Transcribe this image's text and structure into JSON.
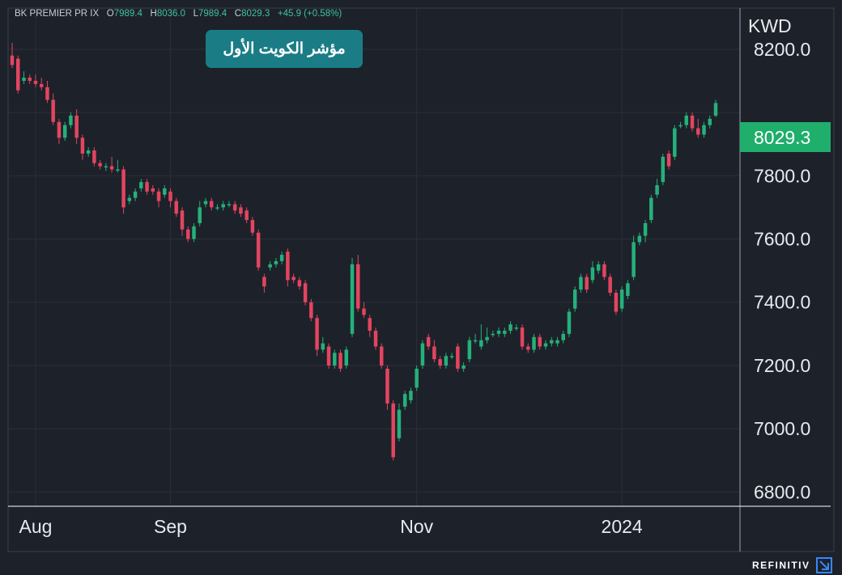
{
  "header": {
    "symbol": "BK PREMIER PR IX",
    "open_label": "O",
    "open": "7989.4",
    "high_label": "H",
    "high": "8036.0",
    "low_label": "L",
    "low": "7989.4",
    "close_label": "C",
    "close": "8029.3",
    "change": "+45.9 (+0.58%)"
  },
  "title_badge": "مؤشر الكويت الأول",
  "brand": "REFINITIV",
  "colors": {
    "up": "#26b07a",
    "down": "#e2455f",
    "background": "#1d212a",
    "grid": "#2a2f38",
    "price_tag": "#1fae6b"
  },
  "chart_data": {
    "type": "candlestick",
    "currency_label": "KWD",
    "last_price": 8029.3,
    "last_price_label": "8029.3",
    "y_ticks": [
      8200,
      8000,
      7800,
      7600,
      7400,
      7200,
      7000,
      6800
    ],
    "y_tick_labels": [
      "8200.0",
      "",
      "7800.0",
      "7600.0",
      "7400.0",
      "7200.0",
      "7000.0",
      "6800.0"
    ],
    "x_tick_labels": [
      "Aug",
      "Sep",
      "Nov",
      "2024"
    ],
    "ylim": [
      6755,
      8330
    ],
    "grid": true,
    "candles": [
      [
        8180,
        8150,
        8220,
        8140
      ],
      [
        8170,
        8070,
        8180,
        8060
      ],
      [
        8100,
        8110,
        8130,
        8090
      ],
      [
        8110,
        8100,
        8120,
        8090
      ],
      [
        8100,
        8090,
        8120,
        8080
      ],
      [
        8090,
        8080,
        8110,
        8070
      ],
      [
        8080,
        8040,
        8100,
        8030
      ],
      [
        8040,
        7970,
        8060,
        7960
      ],
      [
        7970,
        7920,
        7980,
        7900
      ],
      [
        7920,
        7960,
        7970,
        7910
      ],
      [
        7960,
        7990,
        8000,
        7950
      ],
      [
        7990,
        7920,
        8010,
        7900
      ],
      [
        7920,
        7870,
        7930,
        7850
      ],
      [
        7870,
        7880,
        7890,
        7860
      ],
      [
        7880,
        7840,
        7890,
        7830
      ],
      [
        7840,
        7830,
        7850,
        7820
      ],
      [
        7830,
        7830,
        7840,
        7815
      ],
      [
        7830,
        7820,
        7860,
        7810
      ],
      [
        7820,
        7820,
        7850,
        7810
      ],
      [
        7820,
        7700,
        7830,
        7680
      ],
      [
        7720,
        7730,
        7740,
        7710
      ],
      [
        7730,
        7750,
        7760,
        7720
      ],
      [
        7760,
        7780,
        7790,
        7750
      ],
      [
        7780,
        7750,
        7790,
        7740
      ],
      [
        7760,
        7750,
        7770,
        7740
      ],
      [
        7750,
        7720,
        7760,
        7700
      ],
      [
        7740,
        7760,
        7770,
        7730
      ],
      [
        7750,
        7720,
        7760,
        7700
      ],
      [
        7720,
        7680,
        7730,
        7670
      ],
      [
        7690,
        7630,
        7700,
        7610
      ],
      [
        7630,
        7600,
        7640,
        7590
      ],
      [
        7600,
        7640,
        7650,
        7590
      ],
      [
        7650,
        7700,
        7720,
        7640
      ],
      [
        7710,
        7720,
        7730,
        7700
      ],
      [
        7720,
        7700,
        7730,
        7690
      ],
      [
        7700,
        7700,
        7710,
        7690
      ],
      [
        7700,
        7710,
        7720,
        7690
      ],
      [
        7710,
        7710,
        7720,
        7700
      ],
      [
        7710,
        7690,
        7720,
        7680
      ],
      [
        7700,
        7680,
        7710,
        7670
      ],
      [
        7690,
        7660,
        7700,
        7650
      ],
      [
        7660,
        7620,
        7670,
        7610
      ],
      [
        7620,
        7510,
        7630,
        7500
      ],
      [
        7480,
        7450,
        7490,
        7430
      ],
      [
        7510,
        7520,
        7530,
        7500
      ],
      [
        7520,
        7530,
        7540,
        7510
      ],
      [
        7530,
        7550,
        7560,
        7520
      ],
      [
        7560,
        7470,
        7570,
        7450
      ],
      [
        7480,
        7470,
        7490,
        7460
      ],
      [
        7470,
        7450,
        7480,
        7440
      ],
      [
        7460,
        7400,
        7470,
        7390
      ],
      [
        7400,
        7350,
        7410,
        7340
      ],
      [
        7350,
        7250,
        7360,
        7230
      ],
      [
        7250,
        7270,
        7290,
        7240
      ],
      [
        7260,
        7200,
        7270,
        7190
      ],
      [
        7200,
        7240,
        7250,
        7190
      ],
      [
        7240,
        7190,
        7250,
        7180
      ],
      [
        7200,
        7250,
        7260,
        7190
      ],
      [
        7300,
        7520,
        7540,
        7290
      ],
      [
        7520,
        7380,
        7550,
        7370
      ],
      [
        7380,
        7360,
        7400,
        7350
      ],
      [
        7350,
        7310,
        7360,
        7290
      ],
      [
        7310,
        7260,
        7320,
        7250
      ],
      [
        7260,
        7200,
        7270,
        7190
      ],
      [
        7190,
        7080,
        7200,
        7060
      ],
      [
        7080,
        6910,
        7090,
        6900
      ],
      [
        6970,
        7060,
        7080,
        6960
      ],
      [
        7070,
        7110,
        7120,
        7060
      ],
      [
        7090,
        7120,
        7130,
        7080
      ],
      [
        7130,
        7190,
        7200,
        7120
      ],
      [
        7200,
        7270,
        7280,
        7190
      ],
      [
        7290,
        7260,
        7300,
        7250
      ],
      [
        7260,
        7220,
        7280,
        7210
      ],
      [
        7220,
        7200,
        7230,
        7190
      ],
      [
        7200,
        7230,
        7240,
        7190
      ],
      [
        7230,
        7230,
        7240,
        7220
      ],
      [
        7260,
        7190,
        7270,
        7180
      ],
      [
        7190,
        7200,
        7210,
        7180
      ],
      [
        7220,
        7280,
        7290,
        7210
      ],
      [
        7280,
        7280,
        7300,
        7270
      ],
      [
        7260,
        7280,
        7330,
        7250
      ],
      [
        7280,
        7290,
        7320,
        7270
      ],
      [
        7300,
        7300,
        7310,
        7290
      ],
      [
        7300,
        7310,
        7320,
        7290
      ],
      [
        7300,
        7310,
        7320,
        7290
      ],
      [
        7310,
        7330,
        7340,
        7300
      ],
      [
        7320,
        7320,
        7330,
        7310
      ],
      [
        7320,
        7260,
        7330,
        7250
      ],
      [
        7260,
        7250,
        7270,
        7240
      ],
      [
        7250,
        7290,
        7300,
        7240
      ],
      [
        7290,
        7260,
        7300,
        7250
      ],
      [
        7260,
        7270,
        7280,
        7250
      ],
      [
        7270,
        7280,
        7290,
        7260
      ],
      [
        7270,
        7280,
        7290,
        7260
      ],
      [
        7280,
        7300,
        7310,
        7270
      ],
      [
        7300,
        7370,
        7380,
        7290
      ],
      [
        7380,
        7440,
        7450,
        7370
      ],
      [
        7440,
        7480,
        7490,
        7430
      ],
      [
        7480,
        7440,
        7490,
        7430
      ],
      [
        7470,
        7510,
        7530,
        7460
      ],
      [
        7500,
        7520,
        7530,
        7490
      ],
      [
        7520,
        7480,
        7530,
        7470
      ],
      [
        7480,
        7430,
        7490,
        7420
      ],
      [
        7430,
        7370,
        7440,
        7360
      ],
      [
        7380,
        7440,
        7450,
        7370
      ],
      [
        7420,
        7460,
        7470,
        7410
      ],
      [
        7480,
        7590,
        7610,
        7470
      ],
      [
        7590,
        7610,
        7620,
        7580
      ],
      [
        7610,
        7650,
        7660,
        7590
      ],
      [
        7660,
        7730,
        7740,
        7650
      ],
      [
        7740,
        7770,
        7790,
        7730
      ],
      [
        7780,
        7860,
        7870,
        7770
      ],
      [
        7870,
        7830,
        7880,
        7820
      ],
      [
        7860,
        7950,
        7960,
        7850
      ],
      [
        7960,
        7960,
        7970,
        7950
      ],
      [
        7960,
        7990,
        8000,
        7950
      ],
      [
        7990,
        7950,
        8000,
        7940
      ],
      [
        7950,
        7930,
        7980,
        7920
      ],
      [
        7930,
        7960,
        7970,
        7920
      ],
      [
        7960,
        7980,
        7990,
        7950
      ],
      [
        7990,
        8030,
        8040,
        7985
      ]
    ]
  }
}
